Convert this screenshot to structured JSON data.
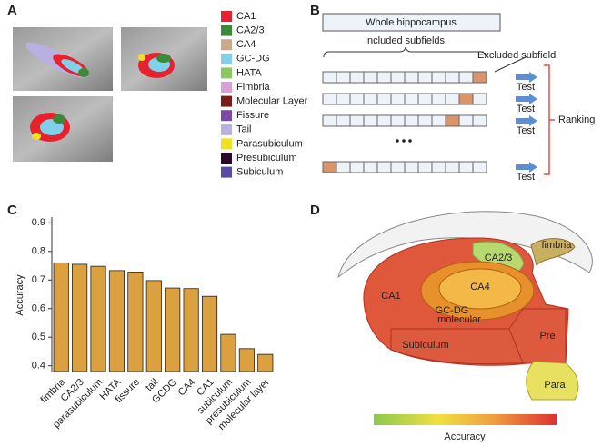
{
  "panels": {
    "a": {
      "label": "A",
      "legend": [
        {
          "name": "CA1",
          "color": "#e8212e"
        },
        {
          "name": "CA2/3",
          "color": "#3a8a3a"
        },
        {
          "name": "CA4",
          "color": "#c8a98a"
        },
        {
          "name": "GC-DG",
          "color": "#7fd0e8"
        },
        {
          "name": "HATA",
          "color": "#8cc860"
        },
        {
          "name": "Fimbria",
          "color": "#d8a0d8"
        },
        {
          "name": "Molecular Layer",
          "color": "#7a1a1a"
        },
        {
          "name": "Fissure",
          "color": "#7a4aa8"
        },
        {
          "name": "Tail",
          "color": "#b8b0e0"
        },
        {
          "name": "Parasubiculum",
          "color": "#f0e020"
        },
        {
          "name": "Presubiculum",
          "color": "#2a0a28"
        },
        {
          "name": "Subiculum",
          "color": "#5a4aa8"
        }
      ]
    },
    "b": {
      "label": "B",
      "whole": "Whole hippocampus",
      "included": "Included subfields",
      "excluded": "Excluded subfield",
      "tests": [
        "Test",
        "Test",
        "Test",
        "Test"
      ],
      "ranking": "Ranking"
    },
    "d": {
      "label": "D",
      "regions": [
        "fimbria",
        "CA2/3",
        "CA4",
        "GC-DG",
        "molecular",
        "CA1",
        "Subiculum",
        "Pre",
        "Para"
      ],
      "colorbar": "Accuracy"
    }
  },
  "chart_data": {
    "type": "bar",
    "panel_label": "C",
    "ylabel": "Accuracy",
    "categories": [
      "fimbria",
      "CA2/3",
      "parasubiculum",
      "HATA",
      "fissure",
      "tail",
      "GCDG",
      "CA4",
      "CA1",
      "subiculum",
      "presubiculum",
      "molecular layer"
    ],
    "values": [
      0.76,
      0.755,
      0.748,
      0.733,
      0.728,
      0.698,
      0.672,
      0.67,
      0.643,
      0.51,
      0.46,
      0.44
    ],
    "color": "#dba040",
    "ylim": [
      0.38,
      0.92
    ],
    "yticks": [
      0.4,
      0.5,
      0.6,
      0.7,
      0.8,
      0.9
    ]
  }
}
